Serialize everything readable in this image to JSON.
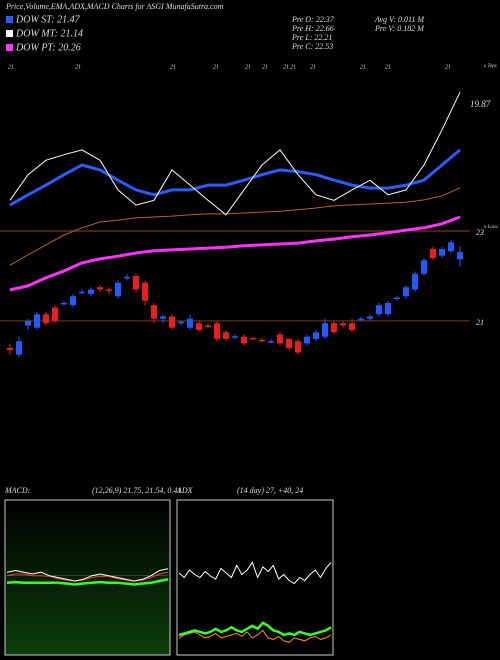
{
  "header": {
    "title": "Price,Volume,EMA,ADX,MACD Charts for ASGI MunafaSutra.com"
  },
  "legend": [
    {
      "label": "DOW ST: 21.47",
      "color": "#2a5cff"
    },
    {
      "label": "DOW MT: 21.14",
      "color": "#ffffff"
    },
    {
      "label": "DOW PT: 20.26",
      "color": "#ff33ff"
    }
  ],
  "stats": [
    "Pre  O: 22.37",
    "Pre  H: 22.66",
    "Pre  L: 22.21",
    "Pre  C: 22.53",
    "Avg V: 0.011 M",
    "Pre  V: 0.182 M"
  ],
  "chart_data": [
    {
      "type": "candlestick",
      "up_color": "#1f5bff",
      "down_color": "#ee1c1c",
      "open": [
        20.4,
        20.25,
        20.9,
        20.85,
        21.15,
        21.3,
        21.4,
        21.35,
        21.65,
        21.6,
        21.75,
        21.7,
        21.55,
        21.95,
        22.0,
        21.85,
        21.35,
        21.05,
        21.1,
        20.95,
        20.85,
        20.95,
        20.9,
        20.95,
        20.75,
        20.65,
        20.65,
        20.62,
        20.58,
        20.55,
        20.7,
        20.6,
        20.55,
        20.5,
        20.6,
        20.65,
        20.95,
        20.95,
        20.95,
        21.05,
        21.05,
        21.15,
        21.15,
        21.5,
        21.55,
        21.7,
        22.05,
        22.6,
        22.45,
        22.55,
        22.37
      ],
      "high": [
        20.5,
        20.65,
        21.05,
        21.2,
        21.2,
        21.35,
        21.45,
        21.6,
        21.7,
        21.75,
        21.8,
        21.75,
        21.9,
        22.05,
        22.05,
        21.9,
        21.4,
        21.15,
        21.15,
        21.0,
        21.15,
        21.0,
        20.95,
        21.0,
        20.8,
        20.7,
        20.7,
        20.65,
        20.62,
        20.6,
        20.75,
        20.62,
        20.6,
        20.7,
        20.8,
        21.05,
        21.0,
        21.0,
        21.05,
        21.1,
        21.15,
        21.4,
        21.45,
        21.55,
        21.8,
        22.1,
        22.4,
        22.65,
        22.65,
        22.8,
        22.66
      ],
      "low": [
        20.25,
        20.2,
        20.8,
        20.8,
        20.9,
        20.95,
        21.35,
        21.3,
        21.6,
        21.55,
        21.65,
        21.6,
        21.5,
        21.9,
        21.65,
        21.35,
        20.95,
        20.95,
        20.8,
        20.9,
        20.8,
        20.75,
        20.85,
        20.55,
        20.55,
        20.6,
        20.45,
        20.58,
        20.52,
        20.5,
        20.45,
        20.35,
        20.25,
        20.45,
        20.55,
        20.6,
        20.7,
        20.85,
        20.75,
        21.0,
        21.0,
        21.1,
        21.1,
        21.45,
        21.5,
        21.65,
        22.0,
        22.35,
        22.4,
        22.5,
        22.21
      ],
      "close": [
        20.35,
        20.55,
        21.0,
        21.15,
        20.95,
        21.0,
        21.4,
        21.55,
        21.65,
        21.7,
        21.7,
        21.68,
        21.85,
        21.98,
        21.7,
        21.45,
        21.05,
        21.1,
        20.85,
        20.98,
        21.05,
        20.8,
        20.88,
        20.6,
        20.6,
        20.66,
        20.5,
        20.6,
        20.55,
        20.55,
        20.5,
        20.4,
        20.3,
        20.65,
        20.75,
        20.95,
        20.75,
        20.9,
        20.8,
        21.05,
        21.1,
        21.35,
        21.4,
        21.52,
        21.75,
        22.05,
        22.35,
        22.4,
        22.6,
        22.75,
        22.53
      ],
      "series": [
        {
          "color": "#ff33ff",
          "values": [
            21.69,
            21.78,
            21.96,
            22.11,
            22.29,
            22.38,
            22.44,
            22.51,
            22.56,
            22.58,
            22.6,
            22.62,
            22.64,
            22.67,
            22.69,
            22.71,
            22.73,
            22.78,
            22.82,
            22.87,
            22.91,
            22.96,
            23.02,
            23.07,
            23.16,
            23.31
          ]
        },
        {
          "color": "#b5651d",
          "values": [
            22.24,
            22.47,
            22.69,
            22.91,
            23.07,
            23.2,
            23.24,
            23.29,
            23.31,
            23.33,
            23.36,
            23.38,
            23.38,
            23.4,
            23.42,
            23.44,
            23.47,
            23.51,
            23.56,
            23.58,
            23.6,
            23.62,
            23.64,
            23.69,
            23.78,
            23.96
          ]
        }
      ],
      "ylim": [
        19.91,
        26.8
      ],
      "yticks": [
        21,
        23
      ],
      "grid": true,
      "date_labels": [
        "21",
        "21",
        "21",
        "21",
        "21",
        "21",
        "21",
        "21",
        "21",
        "21",
        "21",
        "21"
      ],
      "annotations": [
        "x Tops",
        "x Lows"
      ]
    },
    {
      "type": "line",
      "annotation": "19.87",
      "ylim": [
        17.6,
        20.4
      ],
      "series": [
        {
          "color": "#2a5cff",
          "values": [
            18.01,
            18.18,
            18.34,
            18.51,
            18.67,
            18.59,
            18.42,
            18.26,
            18.18,
            18.26,
            18.26,
            18.34,
            18.34,
            18.42,
            18.51,
            18.59,
            18.56,
            18.51,
            18.42,
            18.34,
            18.29,
            18.29,
            18.34,
            18.42,
            18.67,
            18.92
          ]
        },
        {
          "color": "#ffffff",
          "values": [
            18.09,
            18.51,
            18.75,
            18.84,
            18.92,
            18.75,
            18.26,
            18.01,
            18.09,
            18.59,
            18.34,
            18.09,
            17.85,
            18.26,
            18.67,
            18.92,
            18.51,
            18.18,
            18.09,
            18.26,
            18.42,
            18.18,
            18.26,
            18.67,
            19.25,
            19.87
          ]
        }
      ]
    },
    {
      "type": "line",
      "title": "MACD:",
      "subtitle": "(12,26,9) 21.75, 21.54, 0.41",
      "ylim": [
        19.6,
        23.9
      ],
      "series": [
        {
          "color": "#33ff33",
          "values": [
            21.6,
            21.62,
            21.6,
            21.6,
            21.6,
            21.6,
            21.6,
            21.58,
            21.55,
            21.58,
            21.6,
            21.62,
            21.6,
            21.6,
            21.58,
            21.55,
            21.58,
            21.6,
            21.65,
            21.7
          ]
        },
        {
          "color": "#ff3333",
          "values": [
            21.8,
            21.85,
            21.85,
            21.8,
            21.8,
            21.78,
            21.72,
            21.68,
            21.65,
            21.68,
            21.75,
            21.78,
            21.78,
            21.72,
            21.68,
            21.65,
            21.68,
            21.75,
            21.85,
            21.9
          ]
        },
        {
          "color": "#ffffff",
          "values": [
            21.9,
            21.95,
            21.9,
            21.85,
            21.9,
            21.8,
            21.75,
            21.7,
            21.65,
            21.7,
            21.8,
            21.85,
            21.8,
            21.75,
            21.7,
            21.65,
            21.7,
            21.8,
            21.95,
            22.0
          ]
        }
      ]
    },
    {
      "type": "line",
      "title": "ADX",
      "subtitle": "(14 day) 27, +40, 24",
      "ylim": [
        0,
        100
      ],
      "series": [
        {
          "color": "#ffffff",
          "values": [
            53,
            50,
            55,
            52,
            50,
            54,
            51,
            49,
            56,
            53,
            50,
            58,
            52,
            55,
            60,
            50,
            57,
            54,
            58,
            49,
            52,
            48,
            46,
            50,
            48,
            52,
            55,
            50,
            56,
            60
          ]
        },
        {
          "color": "#ff8c1a",
          "values": [
            10,
            12,
            13,
            14,
            12,
            10,
            11,
            13,
            10,
            11,
            12,
            13,
            11,
            14,
            10,
            12,
            15,
            10,
            9,
            11,
            8,
            7,
            10,
            9,
            8,
            10,
            11,
            9,
            10,
            12
          ]
        },
        {
          "color": "#33ff33",
          "values": [
            12,
            13,
            14,
            15,
            14,
            13,
            14,
            16,
            14,
            15,
            17,
            15,
            14,
            16,
            18,
            16,
            20,
            18,
            15,
            14,
            12,
            13,
            12,
            14,
            13,
            12,
            13,
            14,
            15,
            17
          ]
        }
      ]
    }
  ]
}
